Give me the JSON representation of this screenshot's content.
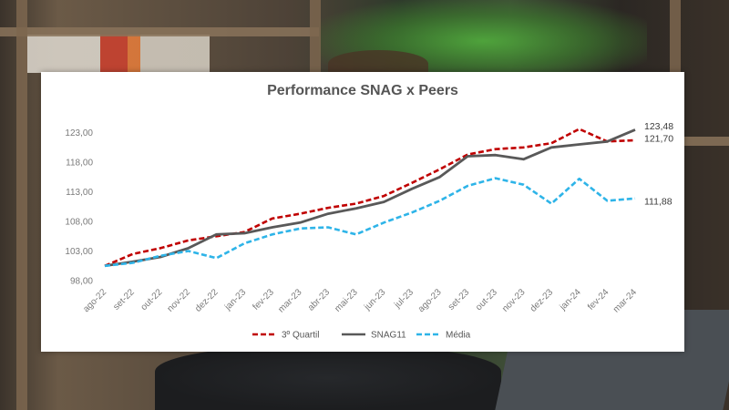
{
  "chart_data": {
    "type": "line",
    "title": "Performance SNAG x Peers",
    "xlabel": "",
    "ylabel": "",
    "ylim": [
      98,
      126
    ],
    "yticks": [
      "98,00",
      "103,00",
      "108,00",
      "113,00",
      "118,00",
      "123,00"
    ],
    "categories": [
      "ago-22",
      "set-22",
      "out-22",
      "nov-22",
      "dez-22",
      "jan-23",
      "fev-23",
      "mar-23",
      "abr-23",
      "mai-23",
      "jun-23",
      "jul-23",
      "ago-23",
      "set-23",
      "out-23",
      "nov-23",
      "dez-23",
      "jan-24",
      "fev-24",
      "mar-24"
    ],
    "series": [
      {
        "name": "3º Quartil",
        "color": "#c00000",
        "style": "dashed",
        "values": [
          100.5,
          102.5,
          103.5,
          104.8,
          105.5,
          106.2,
          108.5,
          109.3,
          110.3,
          111.0,
          112.3,
          114.5,
          116.8,
          119.3,
          120.2,
          120.5,
          121.2,
          123.6,
          121.5,
          121.7
        ]
      },
      {
        "name": "SNAG11",
        "color": "#595959",
        "style": "solid",
        "values": [
          100.5,
          101.2,
          102.0,
          103.5,
          105.8,
          106.0,
          107.0,
          107.8,
          109.3,
          110.2,
          111.3,
          113.5,
          115.5,
          119.0,
          119.2,
          118.5,
          120.5,
          121.0,
          121.5,
          123.48
        ]
      },
      {
        "name": "Média",
        "color": "#2eb4e8",
        "style": "dashed",
        "values": [
          100.5,
          101.0,
          102.2,
          103.0,
          101.8,
          104.3,
          105.8,
          106.8,
          107.0,
          105.8,
          107.8,
          109.5,
          111.5,
          114.0,
          115.3,
          114.2,
          111.0,
          115.2,
          111.5,
          111.88
        ]
      }
    ],
    "end_labels": [
      "123,48",
      "121,70",
      "111,88"
    ],
    "legend_position": "bottom",
    "grid": false
  }
}
